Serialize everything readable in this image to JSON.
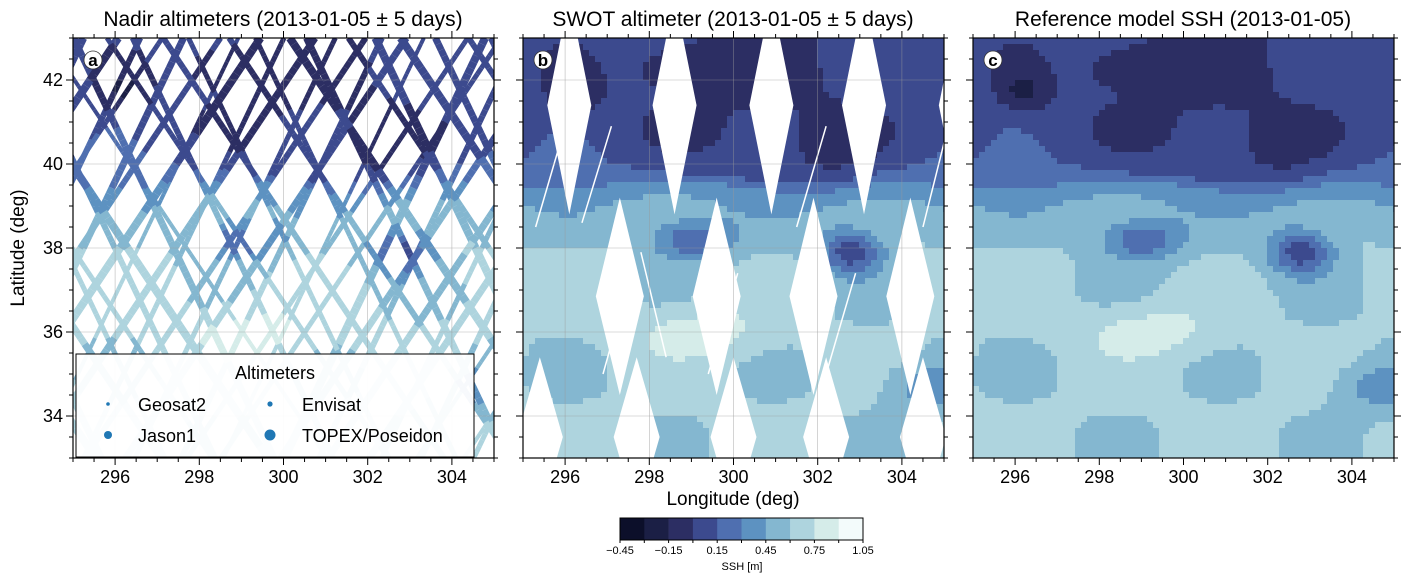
{
  "chart_data": [
    {
      "type": "scatter",
      "panel_label": "a",
      "title": "Nadir altimeters (2013-01-05 ± 5 days)",
      "ylabel": "Latitude (deg)",
      "xlabel": "",
      "xlim": [
        295,
        305
      ],
      "ylim": [
        33,
        43
      ],
      "xticks": [
        "296",
        "298",
        "300",
        "302",
        "304"
      ],
      "yticks": [
        "34",
        "36",
        "38",
        "40",
        "42"
      ],
      "grid": true,
      "legend": {
        "title": "Altimeters",
        "placement": "bottom-left",
        "entries": [
          "Geosat2",
          "Envisat",
          "Jason1",
          "TOPEX/Poseidon"
        ]
      }
    },
    {
      "type": "heatmap",
      "panel_label": "b",
      "title": "SWOT altimeter (2013-01-05 ± 5 days)",
      "xlabel": "Longitude (deg)",
      "ylabel": "",
      "xlim": [
        295,
        305
      ],
      "ylim": [
        33,
        43
      ],
      "xticks": [
        "296",
        "298",
        "300",
        "302",
        "304"
      ],
      "grid": true,
      "eddies": [
        {
          "lon": 302.8,
          "lat": 37.9,
          "ssh": 0.15
        },
        {
          "lon": 299.0,
          "lat": 38.2,
          "ssh": 0.3
        }
      ]
    },
    {
      "type": "heatmap",
      "panel_label": "c",
      "title": "Reference model SSH (2013-01-05)",
      "xlabel": "",
      "ylabel": "",
      "xlim": [
        295,
        305
      ],
      "ylim": [
        33,
        43
      ],
      "xticks": [
        "296",
        "298",
        "300",
        "302",
        "304"
      ],
      "grid": false,
      "eddies": [
        {
          "lon": 302.8,
          "lat": 37.9,
          "ssh": -0.05
        },
        {
          "lon": 299.0,
          "lat": 38.2,
          "ssh": 0.05
        }
      ]
    }
  ],
  "colorbar": {
    "label": "SSH [m]",
    "levels": [
      -0.45,
      -0.3,
      -0.15,
      0.0,
      0.15,
      0.3,
      0.45,
      0.6,
      0.75,
      0.9,
      1.05
    ],
    "tick_labels": [
      "−0.45",
      "−0.15",
      "0.15",
      "0.45",
      "0.75",
      "1.05"
    ],
    "colors": [
      "#0c0f2a",
      "#1b1f45",
      "#2c2e63",
      "#3c4a8e",
      "#4f6fb0",
      "#5d92c1",
      "#84b7d0",
      "#aed4de",
      "#d5ece9",
      "#f3fbfb"
    ]
  }
}
